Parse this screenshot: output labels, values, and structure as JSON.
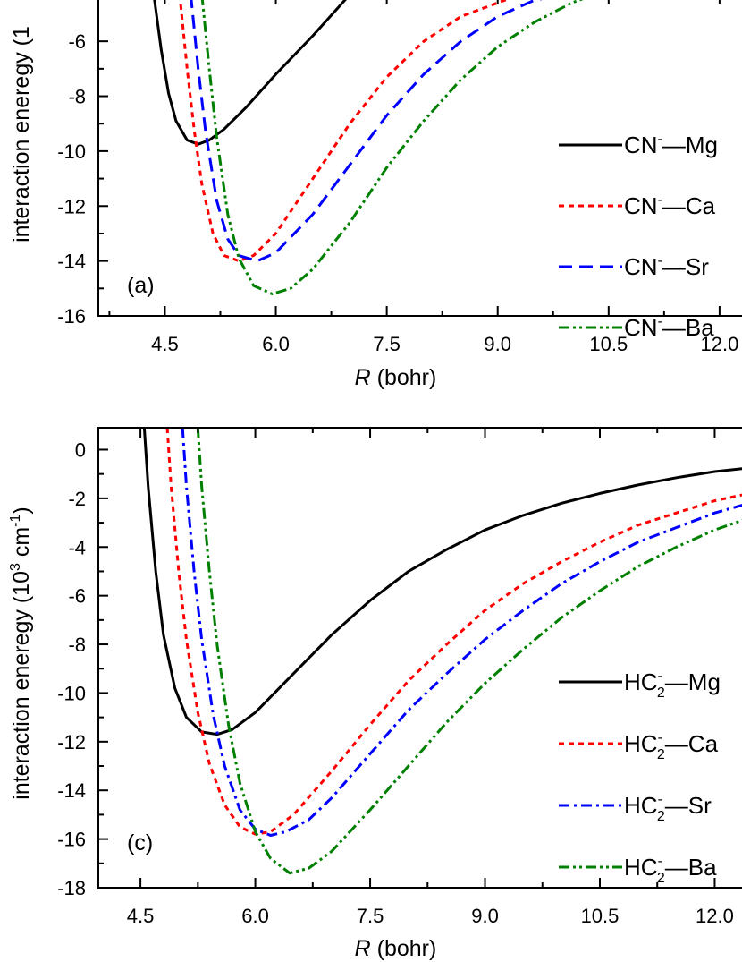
{
  "chart_data": [
    {
      "type": "line",
      "panel_label": "(a)",
      "xlabel_italic": "R",
      "xlabel_rest": " (bohr)",
      "ylabel": "interaction eneregy (1",
      "xlim": [
        3.6,
        12.4
      ],
      "ylim": [
        -16,
        -4.3
      ],
      "xticks": [
        "4.5",
        "6.0",
        "7.5",
        "9.0",
        "10.5",
        "12.0"
      ],
      "xtick_values": [
        4.5,
        6.0,
        7.5,
        9.0,
        10.5,
        12.0
      ],
      "yticks": [
        "-6",
        "-8",
        "-10",
        "-12",
        "-14",
        "-16"
      ],
      "ytick_values": [
        -6,
        -8,
        -10,
        -12,
        -14,
        -16
      ],
      "legend_position": "right",
      "series": [
        {
          "label_main": "CN",
          "label_sup": "-",
          "label_partner": "Mg",
          "color": "#000000",
          "dash": "solid",
          "x": [
            4.35,
            4.45,
            4.55,
            4.65,
            4.8,
            4.95,
            5.1,
            5.3,
            5.6,
            6.0,
            6.5,
            7.0
          ],
          "y": [
            -4.3,
            -6.3,
            -7.9,
            -8.9,
            -9.6,
            -9.75,
            -9.6,
            -9.2,
            -8.4,
            -7.2,
            -5.8,
            -4.3
          ]
        },
        {
          "label_main": "CN",
          "label_sup": "-",
          "label_partner": "Ca",
          "color": "#ff0000",
          "dash": "short",
          "x": [
            4.7,
            4.8,
            4.9,
            5.0,
            5.15,
            5.3,
            5.5,
            5.7,
            6.0,
            6.5,
            7.0,
            7.5,
            8.0,
            8.5,
            9.0,
            9.3
          ],
          "y": [
            -4.3,
            -7.0,
            -9.3,
            -11.2,
            -13.0,
            -13.8,
            -14.0,
            -13.8,
            -13.0,
            -11.0,
            -9.0,
            -7.3,
            -6.0,
            -5.1,
            -4.6,
            -4.3
          ]
        },
        {
          "label_main": "CN",
          "label_sup": "-",
          "label_partner": "Sr",
          "color": "#0000ff",
          "dash": "long",
          "x": [
            4.85,
            4.95,
            5.05,
            5.2,
            5.35,
            5.5,
            5.75,
            6.0,
            6.5,
            7.0,
            7.5,
            8.0,
            8.5,
            9.0,
            9.5,
            9.9
          ],
          "y": [
            -4.3,
            -7.0,
            -9.3,
            -11.8,
            -13.2,
            -13.8,
            -14.0,
            -13.7,
            -12.3,
            -10.5,
            -8.7,
            -7.2,
            -6.0,
            -5.1,
            -4.5,
            -4.3
          ]
        },
        {
          "label_main": "CN",
          "label_sup": "-",
          "label_partner": "Ba",
          "color": "#008000",
          "dash": "dashdotdot",
          "x": [
            5.0,
            5.1,
            5.2,
            5.35,
            5.5,
            5.7,
            5.95,
            6.2,
            6.5,
            7.0,
            7.5,
            8.0,
            8.5,
            9.0,
            9.5,
            10.0,
            10.3
          ],
          "y": [
            -4.3,
            -7.0,
            -9.5,
            -12.3,
            -13.9,
            -14.9,
            -15.2,
            -15.0,
            -14.3,
            -12.6,
            -10.6,
            -8.9,
            -7.4,
            -6.2,
            -5.3,
            -4.6,
            -4.3
          ]
        }
      ]
    },
    {
      "type": "line",
      "panel_label": "(c)",
      "xlabel_italic": "R",
      "xlabel_rest": " (bohr)",
      "ylabel_main": "interaction eneregy (10",
      "ylabel_sup1": "3",
      "ylabel_mid": " cm",
      "ylabel_sup2": "-1",
      "ylabel_end": ")",
      "xlim": [
        3.95,
        12.45
      ],
      "ylim": [
        -18,
        0.9
      ],
      "xticks": [
        "4.5",
        "6.0",
        "7.5",
        "9.0",
        "10.5",
        "12.0"
      ],
      "xtick_values": [
        4.5,
        6.0,
        7.5,
        9.0,
        10.5,
        12.0
      ],
      "yticks": [
        "0",
        "-2",
        "-4",
        "-6",
        "-8",
        "-10",
        "-12",
        "-14",
        "-16",
        "-18"
      ],
      "ytick_values": [
        0,
        -2,
        -4,
        -6,
        -8,
        -10,
        -12,
        -14,
        -16,
        -18
      ],
      "legend_position": "right",
      "series": [
        {
          "label_main": "HC",
          "label_sub": "2",
          "label_sup": "-",
          "label_partner": "Mg",
          "color": "#000000",
          "dash": "solid",
          "x": [
            4.55,
            4.6,
            4.7,
            4.8,
            4.95,
            5.1,
            5.3,
            5.5,
            5.7,
            6.0,
            6.5,
            7.0,
            7.5,
            8.0,
            8.5,
            9.0,
            9.5,
            10.0,
            10.5,
            11.0,
            11.5,
            12.0,
            12.45
          ],
          "y": [
            0.9,
            -1.5,
            -5.0,
            -7.6,
            -9.8,
            -11.0,
            -11.6,
            -11.7,
            -11.5,
            -10.8,
            -9.2,
            -7.6,
            -6.2,
            -5.0,
            -4.1,
            -3.3,
            -2.7,
            -2.2,
            -1.8,
            -1.45,
            -1.15,
            -0.9,
            -0.75
          ]
        },
        {
          "label_main": "HC",
          "label_sub": "2",
          "label_sup": "-",
          "label_partner": "Ca",
          "color": "#ff0000",
          "dash": "short",
          "x": [
            4.85,
            4.9,
            5.0,
            5.1,
            5.25,
            5.4,
            5.6,
            5.8,
            6.0,
            6.2,
            6.5,
            7.0,
            7.5,
            8.0,
            8.5,
            9.0,
            9.5,
            10.0,
            10.5,
            11.0,
            11.5,
            12.0,
            12.45
          ],
          "y": [
            0.9,
            -1.5,
            -5.0,
            -7.8,
            -10.8,
            -12.9,
            -14.6,
            -15.5,
            -15.8,
            -15.7,
            -15.0,
            -13.2,
            -11.3,
            -9.5,
            -8.0,
            -6.6,
            -5.5,
            -4.6,
            -3.8,
            -3.1,
            -2.6,
            -2.1,
            -1.8
          ]
        },
        {
          "label_main": "HC",
          "label_sub": "2",
          "label_sup": "-",
          "label_partner": "Sr",
          "color": "#0000ff",
          "dash": "dashdot",
          "x": [
            5.05,
            5.1,
            5.2,
            5.3,
            5.45,
            5.6,
            5.8,
            6.0,
            6.2,
            6.4,
            6.7,
            7.0,
            7.5,
            8.0,
            8.5,
            9.0,
            9.5,
            10.0,
            10.5,
            11.0,
            11.5,
            12.0,
            12.45
          ],
          "y": [
            0.9,
            -1.5,
            -5.0,
            -7.8,
            -10.9,
            -13.0,
            -14.8,
            -15.6,
            -15.85,
            -15.7,
            -15.2,
            -14.3,
            -12.5,
            -10.7,
            -9.2,
            -7.8,
            -6.6,
            -5.5,
            -4.6,
            -3.8,
            -3.2,
            -2.6,
            -2.2
          ]
        },
        {
          "label_main": "HC",
          "label_sub": "2",
          "label_sup": "-",
          "label_partner": "Ba",
          "color": "#008000",
          "dash": "dashdotdot",
          "x": [
            5.25,
            5.3,
            5.4,
            5.5,
            5.65,
            5.8,
            6.0,
            6.2,
            6.45,
            6.7,
            7.0,
            7.5,
            8.0,
            8.5,
            9.0,
            9.5,
            10.0,
            10.5,
            11.0,
            11.5,
            12.0,
            12.45
          ],
          "y": [
            0.9,
            -1.5,
            -5.0,
            -8.0,
            -11.3,
            -13.7,
            -15.7,
            -16.8,
            -17.4,
            -17.2,
            -16.5,
            -14.8,
            -13.0,
            -11.2,
            -9.6,
            -8.2,
            -6.9,
            -5.8,
            -4.8,
            -4.0,
            -3.3,
            -2.8
          ]
        }
      ]
    }
  ]
}
